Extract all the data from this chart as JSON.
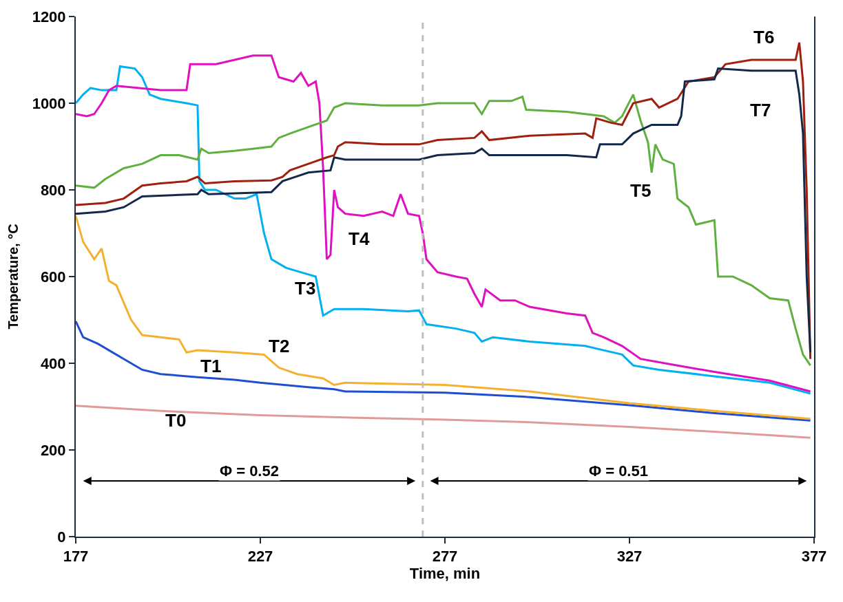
{
  "chart_data": {
    "type": "line",
    "xlabel": "Time, min",
    "ylabel": "Temperature, °C",
    "xlim": [
      177,
      377
    ],
    "xticks": [
      177,
      227,
      277,
      327,
      377
    ],
    "ylim": [
      0,
      1200
    ],
    "yticks": [
      0,
      200,
      400,
      600,
      800,
      1000,
      1200
    ],
    "legend": false,
    "marker": "none",
    "line_style": "solid",
    "series": [
      {
        "name": "T0",
        "color": "#e09a9a",
        "x": [
          177,
          200,
          227,
          250,
          277,
          300,
          327,
          350,
          376
        ],
        "values": [
          302,
          290,
          280,
          275,
          270,
          264,
          253,
          242,
          228
        ]
      },
      {
        "name": "T1",
        "color": "#1f4fd0",
        "x": [
          177,
          179,
          183,
          186,
          190,
          195,
          200,
          210,
          220,
          227,
          240,
          247,
          250,
          277,
          300,
          327,
          350,
          376
        ],
        "values": [
          497,
          460,
          445,
          430,
          410,
          385,
          375,
          368,
          362,
          355,
          345,
          340,
          335,
          332,
          322,
          303,
          285,
          268
        ]
      },
      {
        "name": "T2",
        "color": "#f5b030",
        "x": [
          177,
          179,
          182,
          184,
          186,
          188,
          190,
          192,
          195,
          200,
          205,
          207,
          210,
          220,
          228,
          232,
          237,
          244,
          247,
          250,
          277,
          300,
          327,
          350,
          376
        ],
        "values": [
          740,
          680,
          640,
          665,
          590,
          580,
          540,
          500,
          465,
          460,
          455,
          425,
          430,
          425,
          420,
          390,
          375,
          365,
          350,
          355,
          350,
          335,
          308,
          290,
          272
        ]
      },
      {
        "name": "T3",
        "color": "#00b0f0",
        "x": [
          177,
          179,
          181,
          184,
          188,
          189,
          193,
          195,
          197,
          200,
          207,
          210,
          210.5,
          212,
          215,
          220,
          223,
          226,
          228,
          230,
          234,
          240,
          242,
          244,
          247,
          255,
          267,
          270,
          272,
          280,
          285,
          287,
          290,
          300,
          315,
          320,
          325,
          328,
          335,
          350,
          365,
          376
        ],
        "values": [
          1000,
          1020,
          1035,
          1030,
          1030,
          1085,
          1080,
          1060,
          1020,
          1010,
          1000,
          995,
          820,
          800,
          800,
          780,
          780,
          790,
          700,
          640,
          620,
          605,
          600,
          510,
          525,
          525,
          520,
          522,
          490,
          480,
          470,
          450,
          460,
          450,
          440,
          430,
          420,
          395,
          385,
          370,
          355,
          330
        ]
      },
      {
        "name": "T4",
        "color": "#e010c0",
        "x": [
          177,
          180,
          182,
          184,
          186,
          188,
          200,
          207,
          208,
          215,
          220,
          225,
          230,
          232,
          236,
          238,
          240,
          242,
          243,
          244,
          245,
          246,
          247,
          248,
          250,
          255,
          260,
          263,
          265,
          267,
          270,
          271,
          272,
          275,
          280,
          283,
          285,
          287,
          288,
          292,
          296,
          300,
          310,
          315,
          317,
          320,
          325,
          330,
          340,
          350,
          365,
          376
        ],
        "values": [
          975,
          970,
          975,
          1000,
          1030,
          1040,
          1030,
          1030,
          1090,
          1090,
          1100,
          1110,
          1110,
          1060,
          1050,
          1070,
          1040,
          1050,
          1000,
          850,
          640,
          650,
          800,
          760,
          745,
          740,
          750,
          740,
          790,
          745,
          740,
          700,
          640,
          610,
          600,
          595,
          560,
          530,
          570,
          545,
          545,
          530,
          515,
          510,
          470,
          460,
          440,
          410,
          395,
          380,
          360,
          335
        ]
      },
      {
        "name": "T5",
        "color": "#60b040",
        "x": [
          177,
          182,
          185,
          190,
          195,
          200,
          205,
          210,
          211,
          213,
          220,
          225,
          230,
          232,
          235,
          240,
          245,
          247,
          250,
          260,
          270,
          275,
          285,
          287,
          289,
          295,
          298,
          299,
          310,
          320,
          323,
          325,
          328,
          330,
          332,
          333,
          334,
          336,
          339,
          340,
          343,
          345,
          350,
          351,
          355,
          360,
          365,
          370,
          372,
          374,
          376
        ],
        "values": [
          810,
          805,
          825,
          850,
          860,
          880,
          880,
          870,
          895,
          885,
          890,
          895,
          900,
          920,
          930,
          945,
          960,
          990,
          1000,
          995,
          995,
          1000,
          1000,
          975,
          1005,
          1005,
          1015,
          985,
          980,
          970,
          955,
          970,
          1020,
          960,
          910,
          840,
          905,
          870,
          860,
          780,
          760,
          720,
          730,
          600,
          600,
          580,
          550,
          545,
          480,
          420,
          395
        ]
      },
      {
        "name": "T6",
        "color": "#a02010",
        "x": [
          177,
          185,
          190,
          195,
          200,
          207,
          210,
          212,
          220,
          230,
          233,
          235,
          240,
          245,
          247,
          248,
          250,
          260,
          270,
          275,
          285,
          287,
          289,
          300,
          315,
          317,
          318,
          322,
          325,
          328,
          333,
          335,
          340,
          343,
          350,
          353,
          360,
          365,
          372,
          373,
          374,
          375,
          376
        ],
        "values": [
          765,
          770,
          780,
          810,
          815,
          820,
          830,
          815,
          820,
          822,
          830,
          845,
          860,
          875,
          880,
          900,
          910,
          905,
          905,
          915,
          920,
          935,
          915,
          925,
          930,
          920,
          965,
          955,
          950,
          1000,
          1010,
          990,
          1010,
          1050,
          1060,
          1090,
          1100,
          1100,
          1100,
          1140,
          1050,
          800,
          410
        ]
      },
      {
        "name": "T7",
        "color": "#14294a",
        "x": [
          177,
          185,
          190,
          195,
          210,
          211,
          213,
          230,
          233,
          240,
          246,
          247,
          250,
          270,
          275,
          285,
          287,
          289,
          310,
          318,
          319,
          325,
          328,
          333,
          340,
          341,
          342,
          350,
          351,
          360,
          372,
          373,
          374,
          375,
          376
        ],
        "values": [
          745,
          750,
          760,
          785,
          790,
          800,
          790,
          795,
          820,
          840,
          845,
          875,
          870,
          870,
          880,
          885,
          895,
          880,
          880,
          875,
          905,
          905,
          930,
          950,
          950,
          970,
          1050,
          1055,
          1080,
          1075,
          1075,
          1020,
          930,
          600,
          425
        ]
      }
    ],
    "ref_lines": [
      {
        "axis": "x",
        "value": 271,
        "color": "#bfbfbf",
        "line_style": "dashed"
      }
    ],
    "annotations": [
      "Φ = 0.52",
      "Φ = 0.51"
    ]
  }
}
